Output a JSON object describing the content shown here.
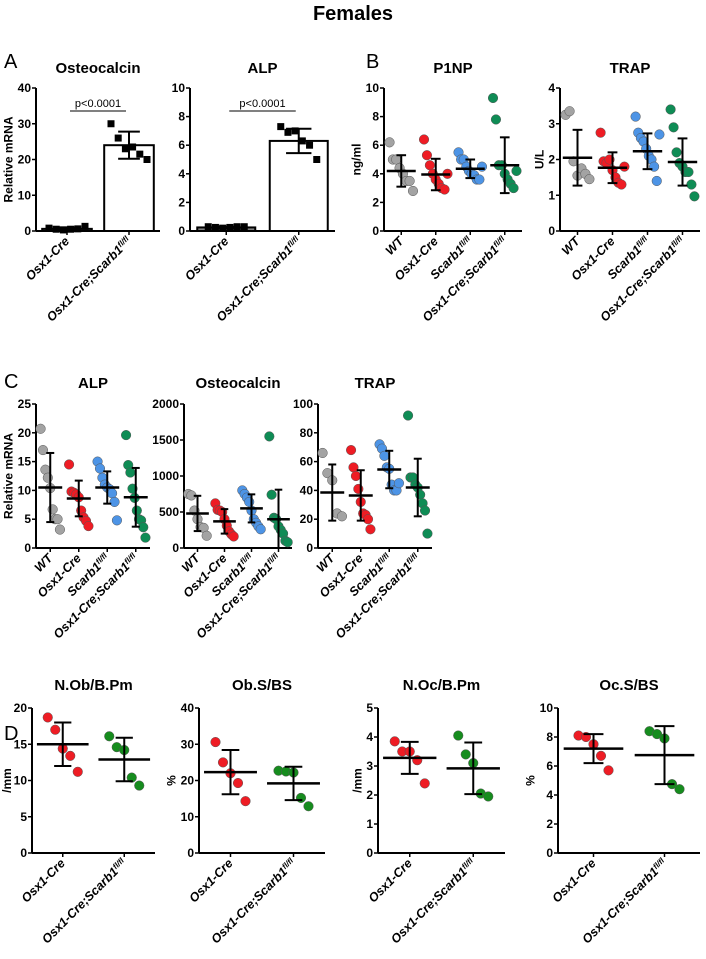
{
  "figure_title": "Females",
  "panel_letters": [
    "A",
    "B",
    "C",
    "D"
  ],
  "colors": {
    "WT": "#a3a3a3",
    "Osx1-Cre": "#ee1c24",
    "Scarb1": "#4d94e6",
    "KO": "#0f8c55",
    "KO_D": "#168c1e",
    "black": "#000000"
  },
  "chart_data": [
    {
      "id": "A1",
      "panel": "A",
      "type": "bar",
      "title": "Osteocalcin",
      "ylabel": "Relative mRNA",
      "ylim": [
        0,
        40
      ],
      "yticks": [
        0,
        10,
        20,
        30,
        40
      ],
      "annotation": "p<0.0001",
      "groups": [
        {
          "label": "Osx1-Cre",
          "sup": "",
          "color": "#808080",
          "mean": 0.6,
          "sd": 0.4,
          "points": [
            0.8,
            0.5,
            0.3,
            0.5,
            0.6,
            1.3
          ]
        },
        {
          "label": "Osx1-Cre;Scarb1",
          "sup": "fl/fl",
          "color": "#ffffff",
          "mean": 24,
          "sd": 3.8,
          "points": [
            30,
            26,
            23,
            23.5,
            21.5,
            20
          ]
        }
      ]
    },
    {
      "id": "A2",
      "panel": "A",
      "type": "bar",
      "title": "ALP",
      "ylabel": "",
      "ylim": [
        0,
        10
      ],
      "yticks": [
        0,
        2,
        4,
        6,
        8,
        10
      ],
      "annotation": "p<0.0001",
      "groups": [
        {
          "label": "Osx1-Cre",
          "sup": "",
          "color": "#808080",
          "mean": 0.25,
          "sd": 0.05,
          "points": [
            0.3,
            0.25,
            0.2,
            0.25,
            0.3,
            0.3
          ]
        },
        {
          "label": "Osx1-Cre;Scarb1",
          "sup": "fl/fl",
          "color": "#ffffff",
          "mean": 6.3,
          "sd": 0.85,
          "points": [
            7.3,
            6.9,
            7.0,
            6.3,
            6.0,
            5.0
          ]
        }
      ]
    },
    {
      "id": "B1",
      "panel": "B",
      "type": "scatter",
      "title": "P1NP",
      "ylabel": "ng/ml",
      "ylim": [
        0,
        10
      ],
      "yticks": [
        0,
        2,
        4,
        6,
        8,
        10
      ],
      "groups": [
        {
          "label": "WT",
          "sup": "",
          "color": "#a3a3a3",
          "mean": 4.2,
          "sd": 1.1,
          "points": [
            6.2,
            5.0,
            5.0,
            4.4,
            4.0,
            3.5,
            3.5,
            2.8
          ]
        },
        {
          "label": "Osx1-Cre",
          "sup": "",
          "color": "#ee1c24",
          "mean": 3.95,
          "sd": 1.1,
          "points": [
            6.4,
            5.3,
            4.6,
            4.0,
            3.6,
            3.3,
            3.0,
            2.9,
            4.0
          ]
        },
        {
          "label": "Scarb1",
          "sup": "fl/fl",
          "color": "#4d94e6",
          "mean": 4.35,
          "sd": 0.65,
          "points": [
            5.5,
            5.0,
            5.0,
            4.5,
            4.2,
            4.0,
            3.9,
            3.6,
            3.6,
            4.5
          ]
        },
        {
          "label": "Osx1-Cre;Scarb1",
          "sup": "fl/fl",
          "color": "#0f8c55",
          "mean": 4.6,
          "sd": 1.95,
          "points": [
            9.3,
            7.8,
            4.6,
            4.6,
            4.0,
            3.6,
            3.3,
            3.0,
            4.2
          ]
        }
      ]
    },
    {
      "id": "B2",
      "panel": "B",
      "type": "scatter",
      "title": "TRAP",
      "ylabel": "U/L",
      "ylim": [
        0,
        4
      ],
      "yticks": [
        0,
        1,
        2,
        3,
        4
      ],
      "groups": [
        {
          "label": "WT",
          "sup": "",
          "color": "#a3a3a3",
          "mean": 2.05,
          "sd": 0.78,
          "points": [
            3.25,
            3.35,
            1.95,
            1.55,
            1.75,
            1.6,
            1.45
          ]
        },
        {
          "label": "Osx1-Cre",
          "sup": "",
          "color": "#ee1c24",
          "mean": 1.77,
          "sd": 0.43,
          "points": [
            2.75,
            1.95,
            1.9,
            2.0,
            1.7,
            1.5,
            1.35,
            1.3,
            1.8
          ]
        },
        {
          "label": "Scarb1",
          "sup": "fl/fl",
          "color": "#4d94e6",
          "mean": 2.23,
          "sd": 0.5,
          "points": [
            3.2,
            2.75,
            2.6,
            2.5,
            2.3,
            2.1,
            2.0,
            1.8,
            1.4,
            2.7
          ]
        },
        {
          "label": "Osx1-Cre;Scarb1",
          "sup": "fl/fl",
          "color": "#0f8c55",
          "mean": 1.93,
          "sd": 0.66,
          "points": [
            3.4,
            2.9,
            2.2,
            1.9,
            1.8,
            1.65,
            1.65,
            1.3,
            0.97
          ]
        }
      ]
    },
    {
      "id": "C1",
      "panel": "C",
      "type": "scatter",
      "title": "ALP",
      "ylabel": "Relative mRNA",
      "ylim": [
        0,
        25
      ],
      "yticks": [
        0,
        5,
        10,
        15,
        20,
        25
      ],
      "groups": [
        {
          "label": "WT",
          "sup": "",
          "color": "#a3a3a3",
          "mean": 10.5,
          "sd": 6,
          "points": [
            20.7,
            17,
            13.6,
            12.2,
            10.4,
            6.7,
            5,
            5,
            3.2
          ]
        },
        {
          "label": "Osx1-Cre",
          "sup": "",
          "color": "#ee1c24",
          "mean": 8.6,
          "sd": 3.1,
          "points": [
            14.5,
            9.8,
            9.6,
            9.3,
            8.8,
            6.5,
            5.3,
            4.7,
            3.8
          ]
        },
        {
          "label": "Scarb1",
          "sup": "fl/fl",
          "color": "#4d94e6",
          "mean": 10.5,
          "sd": 2.8,
          "points": [
            15,
            13.8,
            12.2,
            11,
            10.5,
            10.2,
            9.5,
            8,
            4.8
          ]
        },
        {
          "label": "Osx1-Cre;Scarb1",
          "sup": "fl/fl",
          "color": "#0f8c55",
          "mean": 8.8,
          "sd": 5.1,
          "points": [
            19.6,
            14.4,
            13.1,
            10.3,
            8.7,
            6.5,
            5,
            4.8,
            3.6,
            1.8
          ]
        }
      ]
    },
    {
      "id": "C2",
      "panel": "C",
      "type": "scatter",
      "title": "Osteocalcin",
      "ylabel": "",
      "ylim": [
        0,
        2000
      ],
      "yticks": [
        0,
        500,
        1000,
        1500,
        2000
      ],
      "groups": [
        {
          "label": "WT",
          "sup": "",
          "color": "#a3a3a3",
          "mean": 480,
          "sd": 245,
          "points": [
            750,
            730,
            520,
            400,
            290,
            280,
            170
          ]
        },
        {
          "label": "Osx1-Cre",
          "sup": "",
          "color": "#ee1c24",
          "mean": 370,
          "sd": 170,
          "points": [
            620,
            530,
            520,
            500,
            400,
            310,
            230,
            190,
            160
          ]
        },
        {
          "label": "Scarb1",
          "sup": "fl/fl",
          "color": "#4d94e6",
          "mean": 550,
          "sd": 195,
          "points": [
            800,
            750,
            700,
            640,
            520,
            400,
            350,
            300,
            260
          ]
        },
        {
          "label": "Osx1-Cre;Scarb1",
          "sup": "fl/fl",
          "color": "#0f8c55",
          "mean": 400,
          "sd": 410,
          "points": [
            1550,
            740,
            420,
            400,
            300,
            250,
            200,
            100,
            80
          ]
        }
      ]
    },
    {
      "id": "C3",
      "panel": "C",
      "type": "scatter",
      "title": "TRAP",
      "ylabel": "",
      "ylim": [
        0,
        100
      ],
      "yticks": [
        0,
        20,
        40,
        60,
        80,
        100
      ],
      "groups": [
        {
          "label": "WT",
          "sup": "",
          "color": "#a3a3a3",
          "mean": 38.5,
          "sd": 19.5,
          "points": [
            66,
            52,
            47,
            24,
            22
          ]
        },
        {
          "label": "Osx1-Cre",
          "sup": "",
          "color": "#ee1c24",
          "mean": 36.5,
          "sd": 17.5,
          "points": [
            68,
            56,
            50,
            41,
            32,
            24,
            23,
            20,
            13
          ]
        },
        {
          "label": "Scarb1",
          "sup": "fl/fl",
          "color": "#4d94e6",
          "mean": 54.5,
          "sd": 13,
          "points": [
            72,
            69,
            64,
            56,
            55,
            44,
            40,
            40,
            45
          ]
        },
        {
          "label": "Osx1-Cre;Scarb1",
          "sup": "fl/fl",
          "color": "#0f8c55",
          "mean": 42,
          "sd": 20,
          "points": [
            92,
            49,
            49,
            44,
            42,
            37,
            31,
            26,
            10
          ]
        }
      ]
    },
    {
      "id": "D1",
      "panel": "D",
      "type": "scatter",
      "title": "N.Ob/B.Pm",
      "ylabel": "/mm",
      "ylim": [
        0,
        20
      ],
      "yticks": [
        0,
        5,
        10,
        15,
        20
      ],
      "groups": [
        {
          "label": "Osx1-Cre",
          "sup": "",
          "color": "#ee1c24",
          "mean": 15,
          "sd": 3,
          "points": [
            18.7,
            17,
            14.4,
            13.4,
            11.2
          ]
        },
        {
          "label": "Osx1-Cre;Scarb1",
          "sup": "fl/fl",
          "color": "#168c1e",
          "mean": 12.9,
          "sd": 3,
          "points": [
            16.1,
            14.6,
            14.2,
            10.4,
            9.3
          ]
        }
      ]
    },
    {
      "id": "D2",
      "panel": "D",
      "type": "scatter",
      "title": "Ob.S/BS",
      "ylabel": "%",
      "ylim": [
        0,
        40
      ],
      "yticks": [
        0,
        10,
        20,
        30,
        40
      ],
      "groups": [
        {
          "label": "Osx1-Cre",
          "sup": "",
          "color": "#ee1c24",
          "mean": 22.3,
          "sd": 6.1,
          "points": [
            30.6,
            25,
            22,
            19.3,
            14.3
          ]
        },
        {
          "label": "Osx1-Cre;Scarb1",
          "sup": "fl/fl",
          "color": "#168c1e",
          "mean": 19.2,
          "sd": 4.6,
          "points": [
            22.7,
            22.5,
            22.2,
            15.2,
            12.9
          ]
        }
      ]
    },
    {
      "id": "D3",
      "panel": "D",
      "type": "scatter",
      "title": "N.Oc/B.Pm",
      "ylabel": "/mm",
      "ylim": [
        0,
        5
      ],
      "yticks": [
        0,
        1,
        2,
        3,
        4,
        5
      ],
      "groups": [
        {
          "label": "Osx1-Cre",
          "sup": "",
          "color": "#ee1c24",
          "mean": 3.28,
          "sd": 0.55,
          "points": [
            3.85,
            3.5,
            3.5,
            3.2,
            2.4
          ]
        },
        {
          "label": "Osx1-Cre;Scarb1",
          "sup": "fl/fl",
          "color": "#168c1e",
          "mean": 2.92,
          "sd": 0.89,
          "points": [
            4.05,
            3.4,
            3.1,
            2.05,
            1.95
          ]
        }
      ]
    },
    {
      "id": "D4",
      "panel": "D",
      "type": "scatter",
      "title": "Oc.S/BS",
      "ylabel": "%",
      "ylim": [
        0,
        10
      ],
      "yticks": [
        0,
        2,
        4,
        6,
        8,
        10
      ],
      "groups": [
        {
          "label": "Osx1-Cre",
          "sup": "",
          "color": "#ee1c24",
          "mean": 7.2,
          "sd": 1,
          "points": [
            8.1,
            8,
            7.5,
            6.7,
            5.7
          ]
        },
        {
          "label": "Osx1-Cre;Scarb1",
          "sup": "fl/fl",
          "color": "#168c1e",
          "mean": 6.75,
          "sd": 2,
          "points": [
            8.4,
            8.2,
            7.9,
            4.75,
            4.4
          ]
        }
      ]
    }
  ]
}
